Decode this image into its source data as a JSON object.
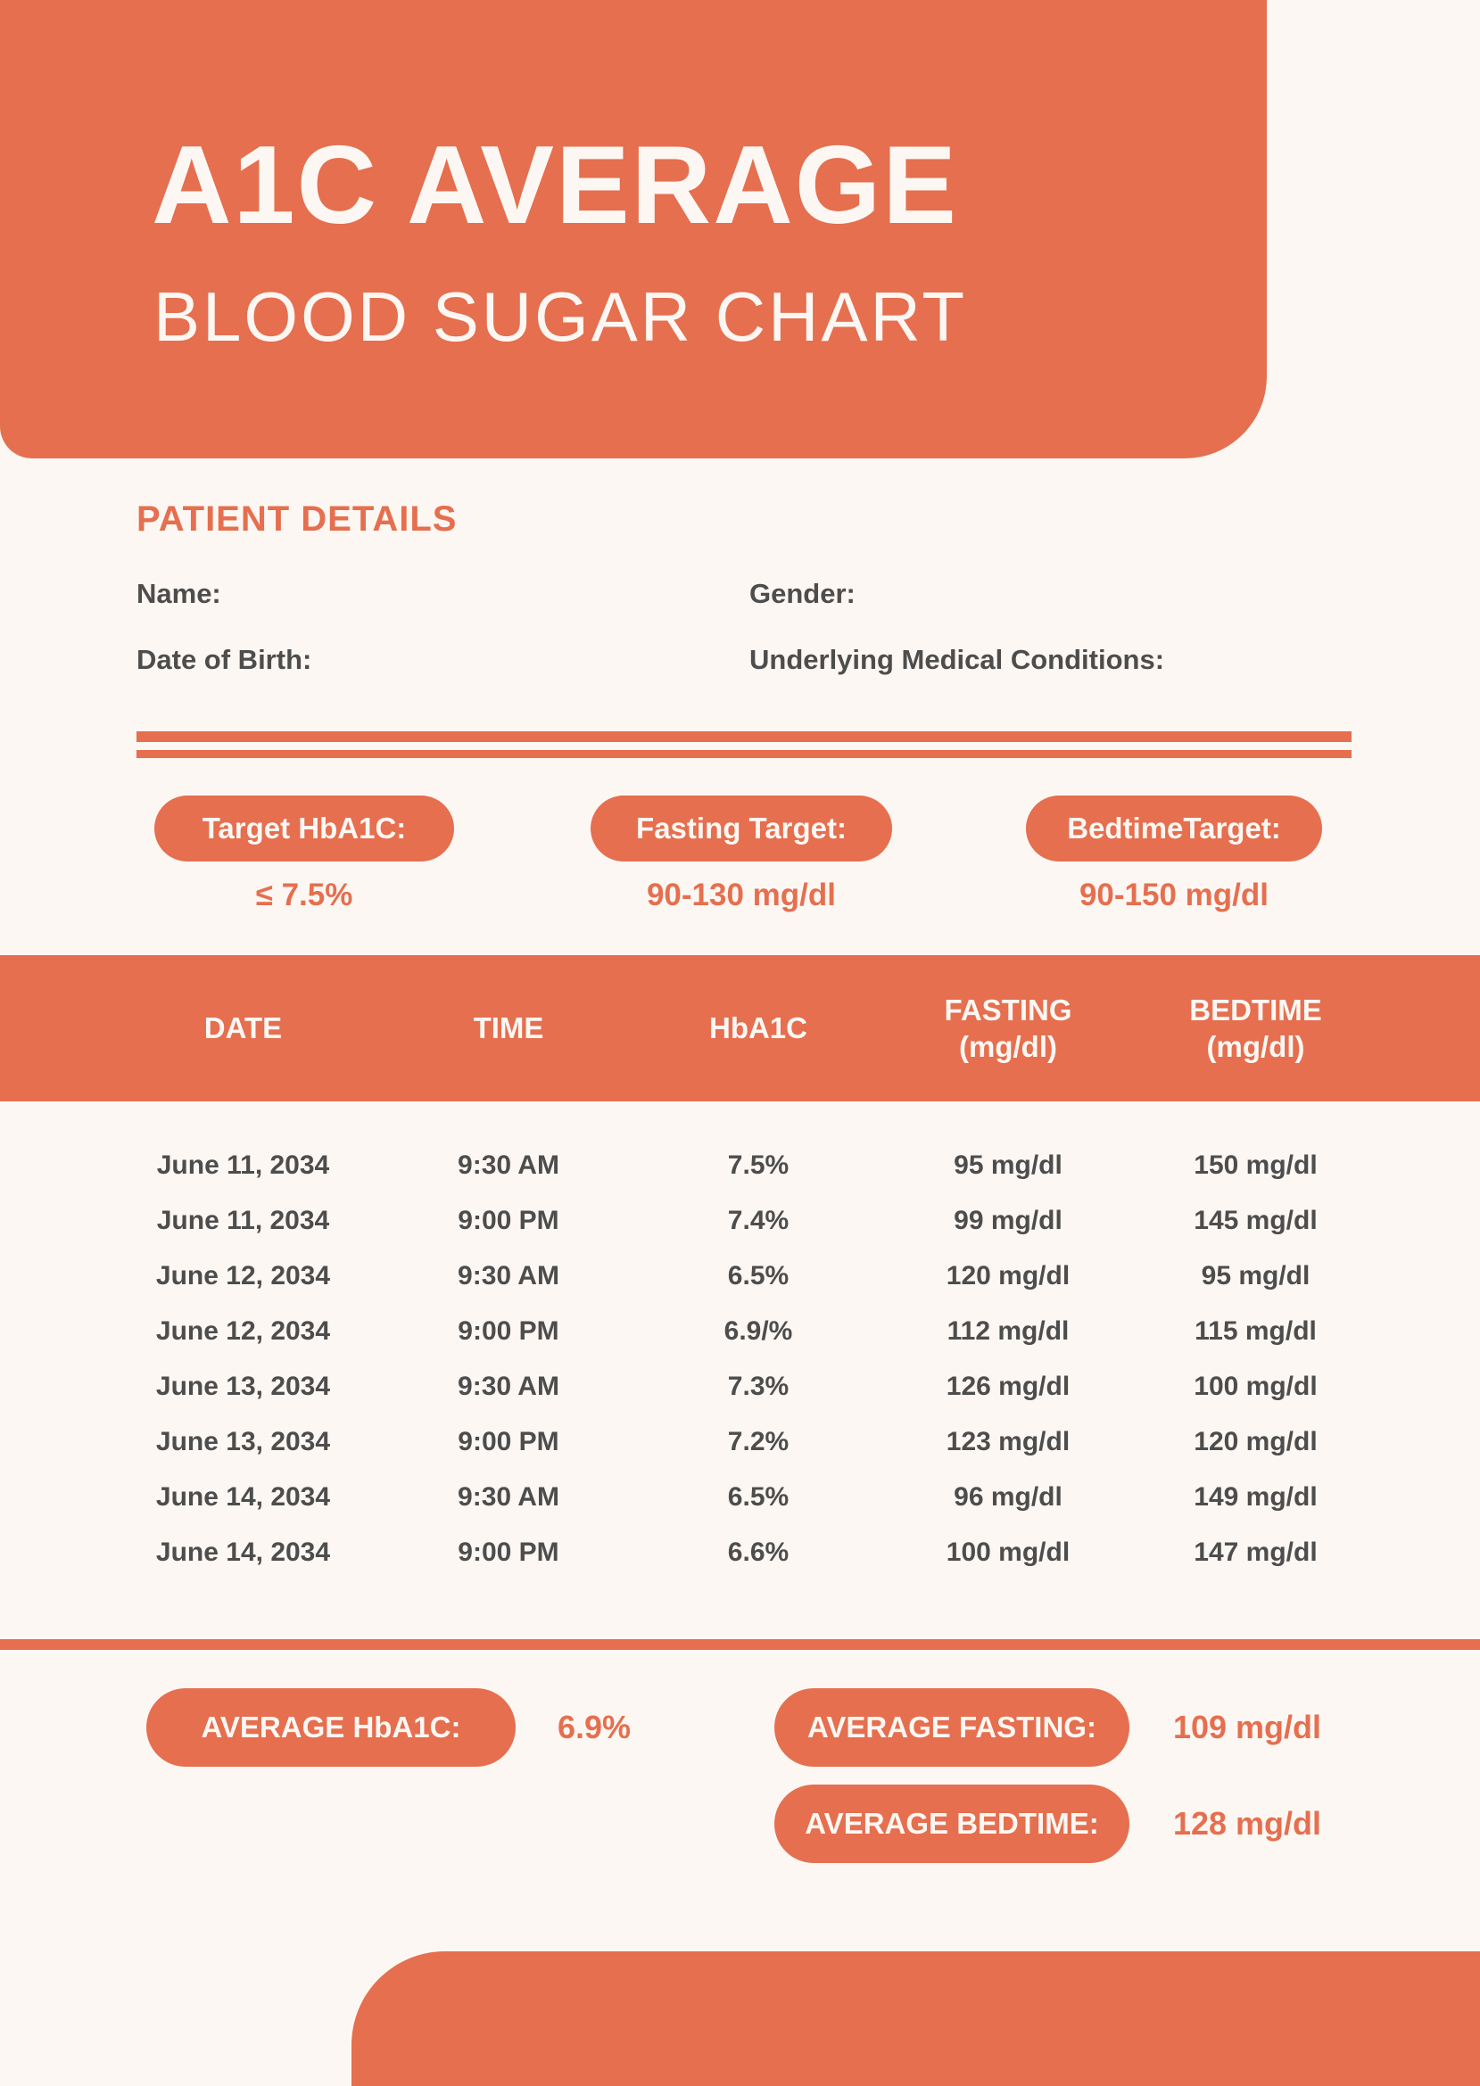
{
  "colors": {
    "accent": "#E56F4F",
    "background": "#FDF7F3",
    "text_dark": "#4D4D4D",
    "text_light": "#FDF7F3"
  },
  "header": {
    "title": "A1C AVERAGE",
    "subtitle": "BLOOD SUGAR CHART"
  },
  "patient": {
    "heading": "PATIENT DETAILS",
    "fields": [
      {
        "label": "Name:"
      },
      {
        "label": "Gender:"
      },
      {
        "label": "Date of Birth:"
      },
      {
        "label": "Underlying Medical Conditions:"
      }
    ]
  },
  "targets": [
    {
      "label": "Target HbA1C:",
      "value": "≤ 7.5%"
    },
    {
      "label": "Fasting Target:",
      "value": "90-130 mg/dl"
    },
    {
      "label": "BedtimeTarget:",
      "value": "90-150 mg/dl"
    }
  ],
  "table": {
    "headers": [
      {
        "line1": "DATE"
      },
      {
        "line1": "TIME"
      },
      {
        "line1": "HbA1C"
      },
      {
        "line1": "FASTING",
        "line2": "(mg/dl)"
      },
      {
        "line1": "BEDTIME",
        "line2": "(mg/dl)"
      }
    ],
    "rows": [
      {
        "date": "June 11, 2034",
        "time": "9:30 AM",
        "hba1c": "7.5%",
        "fasting": "95 mg/dl",
        "bedtime": "150 mg/dl"
      },
      {
        "date": "June 11, 2034",
        "time": "9:00 PM",
        "hba1c": "7.4%",
        "fasting": "99 mg/dl",
        "bedtime": "145 mg/dl"
      },
      {
        "date": "June 12, 2034",
        "time": "9:30 AM",
        "hba1c": "6.5%",
        "fasting": "120 mg/dl",
        "bedtime": "95 mg/dl"
      },
      {
        "date": "June 12, 2034",
        "time": "9:00 PM",
        "hba1c": "6.9/%",
        "fasting": "112 mg/dl",
        "bedtime": "115 mg/dl"
      },
      {
        "date": "June 13, 2034",
        "time": "9:30 AM",
        "hba1c": "7.3%",
        "fasting": "126 mg/dl",
        "bedtime": "100 mg/dl"
      },
      {
        "date": "June 13, 2034",
        "time": "9:00 PM",
        "hba1c": "7.2%",
        "fasting": "123 mg/dl",
        "bedtime": "120 mg/dl"
      },
      {
        "date": "June 14, 2034",
        "time": "9:30 AM",
        "hba1c": "6.5%",
        "fasting": "96 mg/dl",
        "bedtime": "149 mg/dl"
      },
      {
        "date": "June 14, 2034",
        "time": "9:00 PM",
        "hba1c": "6.6%",
        "fasting": "100 mg/dl",
        "bedtime": "147 mg/dl"
      }
    ]
  },
  "averages": [
    {
      "label": "AVERAGE HbA1C:",
      "value": "6.9%"
    },
    {
      "label": "AVERAGE FASTING:",
      "value": "109 mg/dl"
    },
    {
      "label": "AVERAGE BEDTIME:",
      "value": "128 mg/dl"
    }
  ]
}
